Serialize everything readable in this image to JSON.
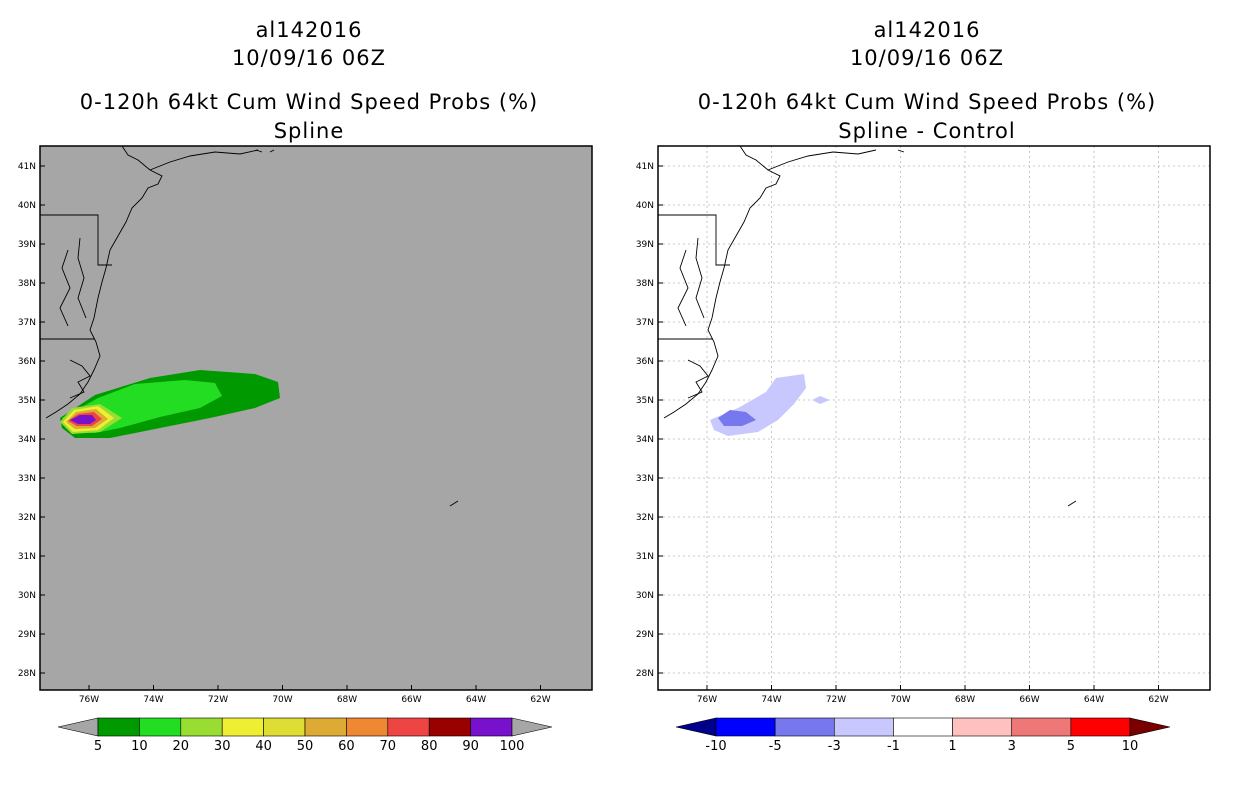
{
  "left_panel": {
    "storm_id": "al142016",
    "datetime": "10/09/16 06Z",
    "product": "0-120h 64kt Cum Wind Speed Probs (%)",
    "subtitle": "Spline",
    "lat_labels": [
      "41N",
      "40N",
      "39N",
      "38N",
      "37N",
      "36N",
      "35N",
      "34N",
      "33N",
      "32N",
      "31N",
      "30N",
      "29N",
      "28N"
    ],
    "lon_labels": [
      "76W",
      "74W",
      "72W",
      "70W",
      "68W",
      "66W",
      "64W",
      "62W"
    ],
    "colorbar": {
      "labels": [
        "5",
        "10",
        "20",
        "30",
        "40",
        "50",
        "60",
        "70",
        "80",
        "90",
        "100"
      ],
      "colors": [
        "#009900",
        "#22dd22",
        "#99dd33",
        "#eeee33",
        "#dddd33",
        "#ddaa33",
        "#ee8833",
        "#ee4444",
        "#990000",
        "#7711cc"
      ],
      "under_color": "#a6a6a6",
      "over_color": "#a6a6a6"
    },
    "background_color": "#a6a6a6"
  },
  "right_panel": {
    "storm_id": "al142016",
    "datetime": "10/09/16 06Z",
    "product": "0-120h 64kt Cum Wind Speed Probs (%)",
    "subtitle": "Spline - Control",
    "lat_labels": [
      "41N",
      "40N",
      "39N",
      "38N",
      "37N",
      "36N",
      "35N",
      "34N",
      "33N",
      "32N",
      "31N",
      "30N",
      "29N",
      "28N"
    ],
    "lon_labels": [
      "76W",
      "74W",
      "72W",
      "70W",
      "68W",
      "66W",
      "64W",
      "62W"
    ],
    "colorbar": {
      "labels": [
        "-10",
        "-5",
        "-3",
        "-1",
        "1",
        "3",
        "5",
        "10"
      ],
      "colors": [
        "#0000ff",
        "#7777ee",
        "#c8c8ff",
        "#ffffff",
        "#ffc0c0",
        "#ee7777",
        "#ff0000"
      ],
      "under_color": "#00008b",
      "over_color": "#7a0000"
    },
    "background_color": "#ffffff"
  }
}
